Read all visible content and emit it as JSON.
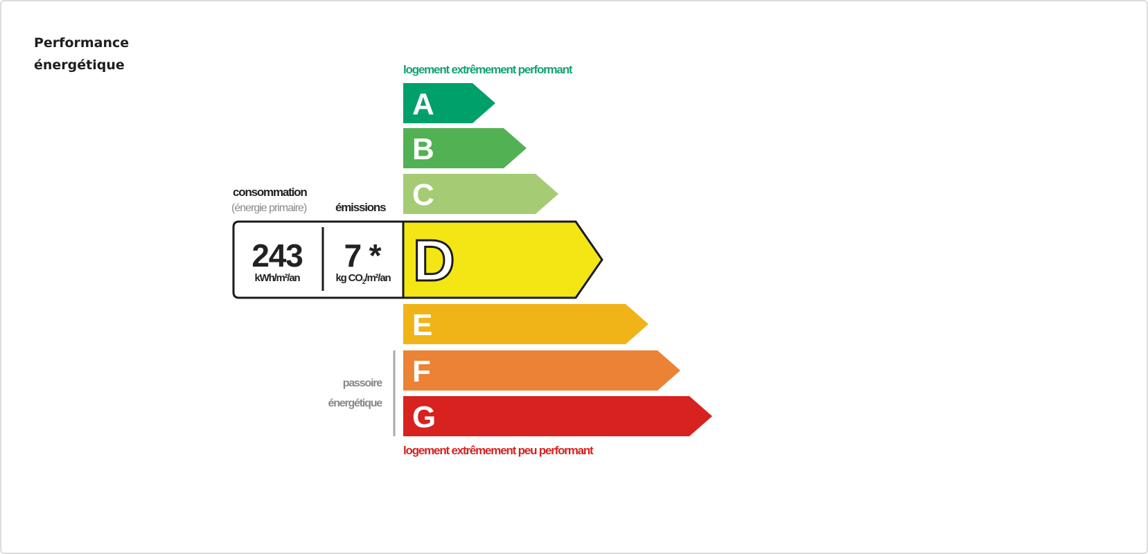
{
  "section": {
    "title_line1": "Performance",
    "title_line2": "énergétique"
  },
  "dpe": {
    "top_label": "logement extrêmement performant",
    "bottom_label": "logement extrêmement peu performant",
    "consumption_label": "consommation",
    "consumption_sublabel": "(énergie primaire)",
    "emissions_label": "émissions",
    "consumption_value": "243",
    "consumption_unit": "kWh/m²/an",
    "emissions_value": "7 *",
    "emissions_unit_pre": "kg CO",
    "emissions_unit_sub": "2",
    "emissions_unit_post": "/m²/an",
    "passoire_line1": "passoire",
    "passoire_line2": "énergétique",
    "current_class": "D",
    "classes": [
      {
        "letter": "A",
        "color": "#00a06b"
      },
      {
        "letter": "B",
        "color": "#52b153"
      },
      {
        "letter": "C",
        "color": "#a5cc74"
      },
      {
        "letter": "D",
        "color": "#f3e614"
      },
      {
        "letter": "E",
        "color": "#f0b418"
      },
      {
        "letter": "F",
        "color": "#eb8235"
      },
      {
        "letter": "G",
        "color": "#d7221f"
      }
    ],
    "top_label_color": "#14a36f",
    "bottom_label_color": "#d7221f"
  }
}
